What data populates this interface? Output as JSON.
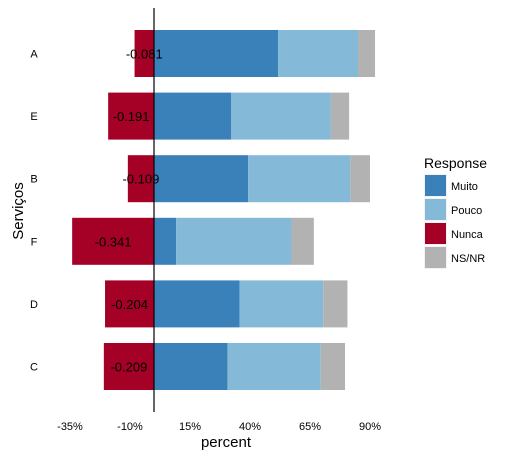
{
  "chart_data": {
    "type": "bar",
    "orientation": "horizontal",
    "stacked": true,
    "diverging": true,
    "xlabel": "percent",
    "ylabel": "Serviços",
    "x_ticks": [
      -35,
      -10,
      15,
      40,
      65,
      90
    ],
    "x_tick_labels": [
      "-35%",
      "-10%",
      "15%",
      "40%",
      "65%",
      "90%"
    ],
    "xlim": [
      -38.5,
      100
    ],
    "grid": false,
    "legend_position": "right",
    "legend_title": "Response",
    "categories": [
      "A",
      "E",
      "B",
      "F",
      "D",
      "C"
    ],
    "series": [
      {
        "name": "Muito",
        "color": "#3a81ba",
        "values": [
          51.7,
          32.2,
          39.2,
          9.2,
          35.7,
          30.6
        ]
      },
      {
        "name": "Pouco",
        "color": "#85b9d8",
        "values": [
          33.3,
          41.5,
          42.6,
          48.1,
          34.8,
          38.9
        ]
      },
      {
        "name": "Nunca",
        "color": "#a50026",
        "values": [
          -8.1,
          -19.1,
          -10.9,
          -34.1,
          -20.4,
          -20.9
        ]
      },
      {
        "name": "NS/NR",
        "color": "#b2b2b2",
        "values": [
          7.1,
          7.6,
          8.2,
          9.3,
          10.1,
          10.1
        ]
      }
    ],
    "data_labels": [
      "-0.081",
      "-0.191",
      "-0.109",
      "-0.341",
      "-0.204",
      "-0.209"
    ]
  }
}
